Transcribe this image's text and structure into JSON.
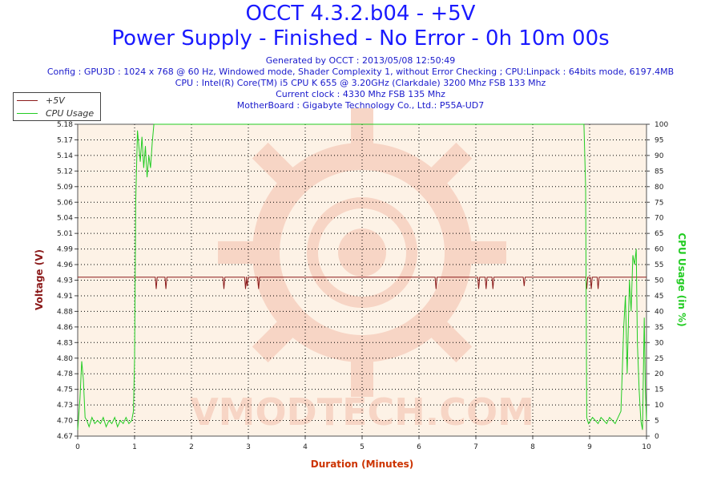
{
  "header": {
    "title": "OCCT 4.3.2.b04 - +5V",
    "subtitle": "Power Supply - Finished - No Error - 0h 10m 00s",
    "generated": "Generated by OCCT : 2013/05/08 12:50:49",
    "config": "Config : GPU3D : 1024 x 768 @ 60 Hz, Windowed mode, Shader Complexity 1, without Error Checking ; CPU:Linpack : 64bits mode, 6197.4MB",
    "cpu": "CPU : Intel(R) Core(TM) i5 CPU K 655 @ 3.20GHz (Clarkdale) 3200 Mhz FSB 133 Mhz",
    "clock": "Current clock : 4330 Mhz FSB 135 Mhz",
    "motherboard": "MotherBoard : Gigabyte Technology Co., Ltd.: P55A-UD7"
  },
  "watermark": "VMODTECH.COM",
  "colors": {
    "voltage": "#8b1a1a",
    "cpu": "#22cc22",
    "plot_bg": "#fdf2e6",
    "title": "#1a1aff",
    "axis_title": "#cc3300"
  },
  "chart_data": {
    "type": "line",
    "xlabel": "Duration (Minutes)",
    "ylabel_left": "Voltage (V)",
    "ylabel_right": "CPU Usage (in %)",
    "x_ticks": [
      0,
      1,
      2,
      3,
      4,
      5,
      6,
      7,
      8,
      9,
      10
    ],
    "xlim": [
      0,
      10
    ],
    "ylim_left": [
      4.67,
      5.2
    ],
    "ylim_right": [
      0,
      100
    ],
    "y_left_ticks": [
      "4.67",
      "4.70",
      "4.73",
      "4.75",
      "4.78",
      "4.80",
      "4.83",
      "4.86",
      "4.88",
      "4.91",
      "4.93",
      "4.96",
      "4.99",
      "5.01",
      "5.04",
      "5.06",
      "5.09",
      "5.12",
      "5.14",
      "5.17",
      "5.18"
    ],
    "y_right_ticks": [
      0,
      5,
      10,
      15,
      20,
      25,
      30,
      35,
      40,
      45,
      50,
      55,
      60,
      65,
      70,
      75,
      80,
      85,
      90,
      95,
      100
    ],
    "grid": true,
    "legend": "top-left",
    "series": [
      {
        "name": "+5V",
        "axis": "left",
        "baseline": 4.94,
        "dips": [
          [
            1.38,
            4.92
          ],
          [
            1.55,
            4.92
          ],
          [
            2.57,
            4.92
          ],
          [
            2.95,
            4.92
          ],
          [
            2.98,
            4.925
          ],
          [
            3.18,
            4.92
          ],
          [
            6.3,
            4.92
          ],
          [
            7.05,
            4.92
          ],
          [
            7.18,
            4.92
          ],
          [
            7.3,
            4.92
          ],
          [
            7.85,
            4.925
          ],
          [
            8.95,
            4.92
          ],
          [
            9.03,
            4.92
          ],
          [
            9.15,
            4.92
          ]
        ]
      },
      {
        "name": "CPU Usage",
        "axis": "right",
        "points": [
          [
            0.0,
            2
          ],
          [
            0.04,
            12
          ],
          [
            0.07,
            24
          ],
          [
            0.1,
            18
          ],
          [
            0.13,
            6
          ],
          [
            0.16,
            5
          ],
          [
            0.2,
            3
          ],
          [
            0.25,
            6
          ],
          [
            0.3,
            4
          ],
          [
            0.35,
            5
          ],
          [
            0.4,
            4
          ],
          [
            0.45,
            6
          ],
          [
            0.5,
            3
          ],
          [
            0.55,
            5
          ],
          [
            0.6,
            4
          ],
          [
            0.65,
            6
          ],
          [
            0.7,
            3
          ],
          [
            0.75,
            5
          ],
          [
            0.8,
            4
          ],
          [
            0.85,
            6
          ],
          [
            0.9,
            4
          ],
          [
            0.95,
            5
          ],
          [
            0.98,
            8
          ],
          [
            1.0,
            25
          ],
          [
            1.02,
            75
          ],
          [
            1.05,
            98
          ],
          [
            1.08,
            92
          ],
          [
            1.1,
            88
          ],
          [
            1.13,
            96
          ],
          [
            1.16,
            86
          ],
          [
            1.19,
            93
          ],
          [
            1.22,
            83
          ],
          [
            1.25,
            90
          ],
          [
            1.28,
            86
          ],
          [
            1.31,
            94
          ],
          [
            1.34,
            100
          ],
          [
            2.0,
            100
          ],
          [
            3.0,
            100
          ],
          [
            4.0,
            100
          ],
          [
            5.0,
            100
          ],
          [
            6.0,
            100
          ],
          [
            7.0,
            100
          ],
          [
            8.0,
            100
          ],
          [
            8.9,
            100
          ],
          [
            8.93,
            80
          ],
          [
            8.95,
            6
          ],
          [
            8.98,
            4
          ],
          [
            9.05,
            6
          ],
          [
            9.1,
            5
          ],
          [
            9.15,
            4
          ],
          [
            9.2,
            6
          ],
          [
            9.25,
            5
          ],
          [
            9.3,
            4
          ],
          [
            9.35,
            6
          ],
          [
            9.4,
            5
          ],
          [
            9.45,
            4
          ],
          [
            9.5,
            6
          ],
          [
            9.55,
            8
          ],
          [
            9.6,
            35
          ],
          [
            9.63,
            45
          ],
          [
            9.66,
            20
          ],
          [
            9.7,
            50
          ],
          [
            9.73,
            40
          ],
          [
            9.76,
            58
          ],
          [
            9.79,
            55
          ],
          [
            9.82,
            60
          ],
          [
            9.84,
            30
          ],
          [
            9.87,
            15
          ],
          [
            9.9,
            5
          ],
          [
            9.93,
            2
          ],
          [
            9.96,
            38
          ],
          [
            9.98,
            15
          ],
          [
            10.0,
            5
          ]
        ]
      }
    ]
  }
}
